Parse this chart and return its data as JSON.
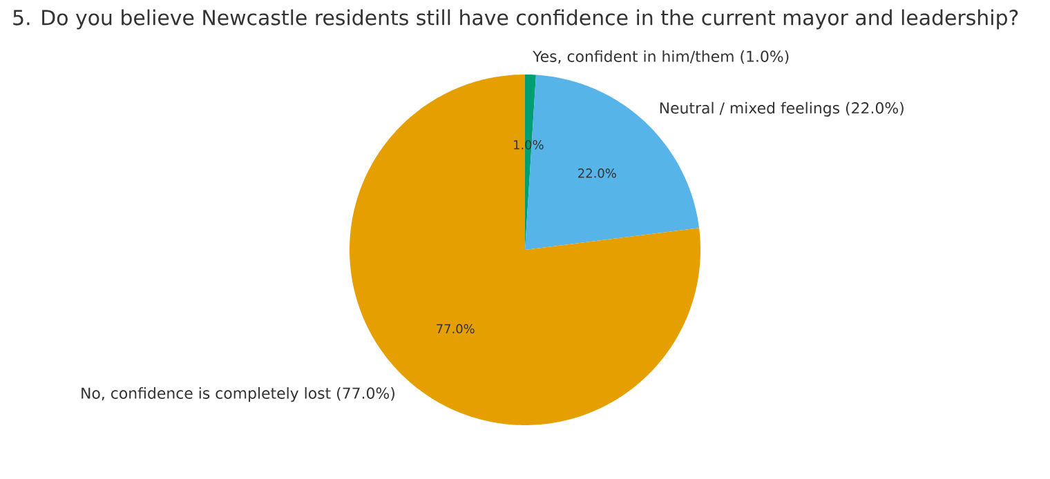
{
  "chart_data": {
    "type": "pie",
    "title": "5. Do you believe Newcastle residents still have confidence in the current mayor and leadership?",
    "categories": [
      "Yes, confident in him/them (1.0%)",
      "Neutral / mixed feelings (22.0%)",
      "No, confidence is completely lost (77.0%)"
    ],
    "values": [
      1.0,
      22.0,
      77.0
    ],
    "colors": [
      "#009e73",
      "#56b4e9",
      "#e69f00"
    ],
    "value_labels": [
      "1.0%",
      "22.0%",
      "77.0%"
    ]
  }
}
